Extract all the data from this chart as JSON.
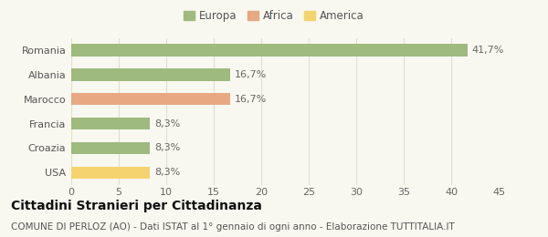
{
  "categories": [
    "Romania",
    "Albania",
    "Marocco",
    "Francia",
    "Croazia",
    "USA"
  ],
  "values": [
    41.7,
    16.7,
    16.7,
    8.3,
    8.3,
    8.3
  ],
  "labels": [
    "41,7%",
    "16,7%",
    "16,7%",
    "8,3%",
    "8,3%",
    "8,3%"
  ],
  "bar_colors": [
    "#9eba7e",
    "#9eba7e",
    "#e8a882",
    "#9eba7e",
    "#9eba7e",
    "#f5d36e"
  ],
  "legend_items": [
    {
      "label": "Europa",
      "color": "#9eba7e"
    },
    {
      "label": "Africa",
      "color": "#e8a882"
    },
    {
      "label": "America",
      "color": "#f5d36e"
    }
  ],
  "xlim": [
    0,
    45
  ],
  "xticks": [
    0,
    5,
    10,
    15,
    20,
    25,
    30,
    35,
    40,
    45
  ],
  "title": "Cittadini Stranieri per Cittadinanza",
  "subtitle": "COMUNE DI PERLOZ (AO) - Dati ISTAT al 1° gennaio di ogni anno - Elaborazione TUTTITALIA.IT",
  "bg_color": "#f8f8f0",
  "grid_color": "#e0e0d0",
  "bar_height": 0.5,
  "title_fontsize": 10,
  "subtitle_fontsize": 7.5,
  "tick_fontsize": 8,
  "label_fontsize": 8
}
